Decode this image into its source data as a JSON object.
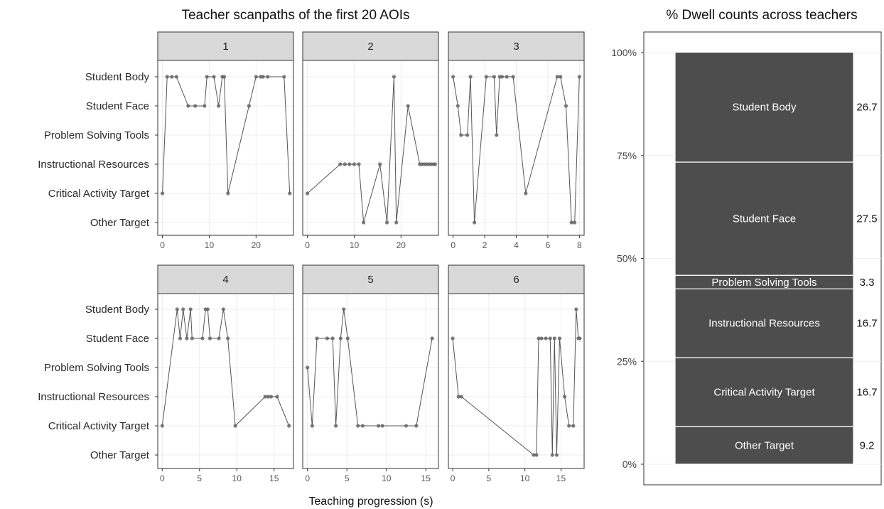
{
  "left_title": "Teacher scanpaths of the first 20 AOIs",
  "right_title": "% Dwell counts across teachers",
  "x_axis_title": "Teaching progression (s)",
  "aoi_levels": [
    "Student Body",
    "Student Face",
    "Problem Solving Tools",
    "Instructional Resources",
    "Critical Activity Target",
    "Other Target"
  ],
  "colors": {
    "line": "#555555",
    "point": "#666666",
    "bar": "#4d4d4d",
    "strip": "#d9d9d9"
  },
  "chart_data": [
    {
      "type": "line",
      "title": "Teacher scanpaths of the first 20 AOIs",
      "xlabel": "Teaching progression (s)",
      "ylabel": "",
      "facets": [
        {
          "label": "1",
          "xlim": [
            -1,
            28
          ],
          "xticks": [
            0,
            10,
            20
          ],
          "points": [
            {
              "x": 0,
              "y": "Critical Activity Target"
            },
            {
              "x": 1,
              "y": "Student Body"
            },
            {
              "x": 2,
              "y": "Student Body"
            },
            {
              "x": 3,
              "y": "Student Body"
            },
            {
              "x": 5.5,
              "y": "Student Face"
            },
            {
              "x": 7,
              "y": "Student Face"
            },
            {
              "x": 9,
              "y": "Student Face"
            },
            {
              "x": 9.5,
              "y": "Student Body"
            },
            {
              "x": 11,
              "y": "Student Body"
            },
            {
              "x": 12,
              "y": "Student Face"
            },
            {
              "x": 12.8,
              "y": "Student Body"
            },
            {
              "x": 13.2,
              "y": "Student Body"
            },
            {
              "x": 14,
              "y": "Critical Activity Target"
            },
            {
              "x": 18.5,
              "y": "Student Face"
            },
            {
              "x": 20,
              "y": "Student Body"
            },
            {
              "x": 21,
              "y": "Student Body"
            },
            {
              "x": 21.5,
              "y": "Student Body"
            },
            {
              "x": 22.5,
              "y": "Student Body"
            },
            {
              "x": 26,
              "y": "Student Body"
            },
            {
              "x": 27.2,
              "y": "Critical Activity Target"
            }
          ]
        },
        {
          "label": "2",
          "xlim": [
            -1,
            28
          ],
          "xticks": [
            0,
            10,
            20
          ],
          "points": [
            {
              "x": 0,
              "y": "Critical Activity Target"
            },
            {
              "x": 7,
              "y": "Instructional Resources"
            },
            {
              "x": 8,
              "y": "Instructional Resources"
            },
            {
              "x": 9,
              "y": "Instructional Resources"
            },
            {
              "x": 10,
              "y": "Instructional Resources"
            },
            {
              "x": 11,
              "y": "Instructional Resources"
            },
            {
              "x": 12,
              "y": "Other Target"
            },
            {
              "x": 15.5,
              "y": "Instructional Resources"
            },
            {
              "x": 17,
              "y": "Other Target"
            },
            {
              "x": 18.5,
              "y": "Student Body"
            },
            {
              "x": 19,
              "y": "Other Target"
            },
            {
              "x": 21.5,
              "y": "Student Face"
            },
            {
              "x": 24,
              "y": "Instructional Resources"
            },
            {
              "x": 24.5,
              "y": "Instructional Resources"
            },
            {
              "x": 25,
              "y": "Instructional Resources"
            },
            {
              "x": 25.5,
              "y": "Instructional Resources"
            },
            {
              "x": 26,
              "y": "Instructional Resources"
            },
            {
              "x": 26.5,
              "y": "Instructional Resources"
            },
            {
              "x": 27,
              "y": "Instructional Resources"
            },
            {
              "x": 27.3,
              "y": "Instructional Resources"
            }
          ]
        },
        {
          "label": "3",
          "xlim": [
            -0.3,
            8.3
          ],
          "xticks": [
            0,
            2,
            4,
            6,
            8
          ],
          "points": [
            {
              "x": 0,
              "y": "Student Body"
            },
            {
              "x": 0.3,
              "y": "Student Face"
            },
            {
              "x": 0.5,
              "y": "Problem Solving Tools"
            },
            {
              "x": 0.9,
              "y": "Problem Solving Tools"
            },
            {
              "x": 1.1,
              "y": "Student Body"
            },
            {
              "x": 1.35,
              "y": "Other Target"
            },
            {
              "x": 2.1,
              "y": "Student Body"
            },
            {
              "x": 2.6,
              "y": "Student Body"
            },
            {
              "x": 2.75,
              "y": "Problem Solving Tools"
            },
            {
              "x": 2.95,
              "y": "Student Body"
            },
            {
              "x": 3.1,
              "y": "Student Body"
            },
            {
              "x": 3.4,
              "y": "Student Body"
            },
            {
              "x": 3.8,
              "y": "Student Body"
            },
            {
              "x": 4.6,
              "y": "Critical Activity Target"
            },
            {
              "x": 6.6,
              "y": "Student Body"
            },
            {
              "x": 6.8,
              "y": "Student Body"
            },
            {
              "x": 7.15,
              "y": "Student Face"
            },
            {
              "x": 7.5,
              "y": "Other Target"
            },
            {
              "x": 7.7,
              "y": "Other Target"
            },
            {
              "x": 8,
              "y": "Student Body"
            }
          ]
        },
        {
          "label": "4",
          "xlim": [
            -0.6,
            17.6
          ],
          "xticks": [
            0,
            5,
            10,
            15
          ],
          "points": [
            {
              "x": 0,
              "y": "Critical Activity Target"
            },
            {
              "x": 2,
              "y": "Student Body"
            },
            {
              "x": 2.4,
              "y": "Student Face"
            },
            {
              "x": 2.8,
              "y": "Student Body"
            },
            {
              "x": 3.3,
              "y": "Student Face"
            },
            {
              "x": 3.8,
              "y": "Student Body"
            },
            {
              "x": 4,
              "y": "Student Face"
            },
            {
              "x": 5.4,
              "y": "Student Face"
            },
            {
              "x": 5.8,
              "y": "Student Body"
            },
            {
              "x": 6.1,
              "y": "Student Body"
            },
            {
              "x": 6.4,
              "y": "Student Face"
            },
            {
              "x": 7.6,
              "y": "Student Face"
            },
            {
              "x": 8.2,
              "y": "Student Body"
            },
            {
              "x": 8.8,
              "y": "Student Face"
            },
            {
              "x": 9.8,
              "y": "Critical Activity Target"
            },
            {
              "x": 13.8,
              "y": "Instructional Resources"
            },
            {
              "x": 14.2,
              "y": "Instructional Resources"
            },
            {
              "x": 14.6,
              "y": "Instructional Resources"
            },
            {
              "x": 15.4,
              "y": "Instructional Resources"
            },
            {
              "x": 17,
              "y": "Critical Activity Target"
            }
          ]
        },
        {
          "label": "5",
          "xlim": [
            -0.6,
            16.6
          ],
          "xticks": [
            0,
            5,
            10,
            15
          ],
          "points": [
            {
              "x": 0,
              "y": "Problem Solving Tools"
            },
            {
              "x": 0.6,
              "y": "Critical Activity Target"
            },
            {
              "x": 1.2,
              "y": "Student Face"
            },
            {
              "x": 2.5,
              "y": "Student Face"
            },
            {
              "x": 3.2,
              "y": "Student Face"
            },
            {
              "x": 3.6,
              "y": "Critical Activity Target"
            },
            {
              "x": 4.2,
              "y": "Student Face"
            },
            {
              "x": 4.6,
              "y": "Student Body"
            },
            {
              "x": 5.1,
              "y": "Student Face"
            },
            {
              "x": 6.4,
              "y": "Critical Activity Target"
            },
            {
              "x": 7,
              "y": "Critical Activity Target"
            },
            {
              "x": 9,
              "y": "Critical Activity Target"
            },
            {
              "x": 9.5,
              "y": "Critical Activity Target"
            },
            {
              "x": 12.5,
              "y": "Critical Activity Target"
            },
            {
              "x": 13.8,
              "y": "Critical Activity Target"
            },
            {
              "x": 15.8,
              "y": "Student Face"
            }
          ]
        },
        {
          "label": "6",
          "xlim": [
            -0.6,
            18.2
          ],
          "xticks": [
            0,
            5,
            10,
            15
          ],
          "points": [
            {
              "x": 0,
              "y": "Student Face"
            },
            {
              "x": 0.8,
              "y": "Instructional Resources"
            },
            {
              "x": 1.2,
              "y": "Instructional Resources"
            },
            {
              "x": 11.2,
              "y": "Other Target"
            },
            {
              "x": 11.6,
              "y": "Other Target"
            },
            {
              "x": 11.9,
              "y": "Student Face"
            },
            {
              "x": 12.3,
              "y": "Student Face"
            },
            {
              "x": 12.9,
              "y": "Student Face"
            },
            {
              "x": 13.5,
              "y": "Student Face"
            },
            {
              "x": 13.8,
              "y": "Other Target"
            },
            {
              "x": 14.1,
              "y": "Student Face"
            },
            {
              "x": 14.4,
              "y": "Other Target"
            },
            {
              "x": 14.8,
              "y": "Student Face"
            },
            {
              "x": 15.5,
              "y": "Instructional Resources"
            },
            {
              "x": 16.1,
              "y": "Critical Activity Target"
            },
            {
              "x": 16.7,
              "y": "Critical Activity Target"
            },
            {
              "x": 17.1,
              "y": "Student Body"
            },
            {
              "x": 17.4,
              "y": "Student Face"
            },
            {
              "x": 17.6,
              "y": "Student Face"
            }
          ]
        }
      ]
    },
    {
      "type": "bar",
      "title": "% Dwell counts across teachers",
      "ylim": [
        0,
        100
      ],
      "yticks": [
        "0%",
        "25%",
        "50%",
        "75%",
        "100%"
      ],
      "segments": [
        {
          "label": "Other Target",
          "value": 9.2
        },
        {
          "label": "Critical Activity Target",
          "value": 16.7
        },
        {
          "label": "Instructional Resources",
          "value": 16.7
        },
        {
          "label": "Problem Solving Tools",
          "value": 3.3
        },
        {
          "label": "Student Face",
          "value": 27.5
        },
        {
          "label": "Student Body",
          "value": 26.7
        }
      ],
      "value_labels": [
        "9.2",
        "16.7",
        "16.7",
        "3.3",
        "27.5",
        "26.7"
      ]
    }
  ]
}
